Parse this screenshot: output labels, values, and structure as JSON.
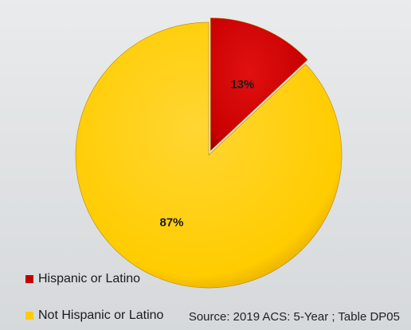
{
  "chart_data": {
    "type": "pie",
    "categories": [
      "Hispanic or Latino",
      "Not Hispanic or Latino"
    ],
    "values": [
      13,
      87
    ],
    "data_labels": [
      "13%",
      "87%"
    ],
    "colors": [
      "#d00000",
      "#ffcc00"
    ],
    "exploded_slice": "Hispanic or Latino",
    "legend_placement": "bottom-left",
    "title": "",
    "source": "Source: 2019 ACS: 5-Year ; Table DP05"
  }
}
